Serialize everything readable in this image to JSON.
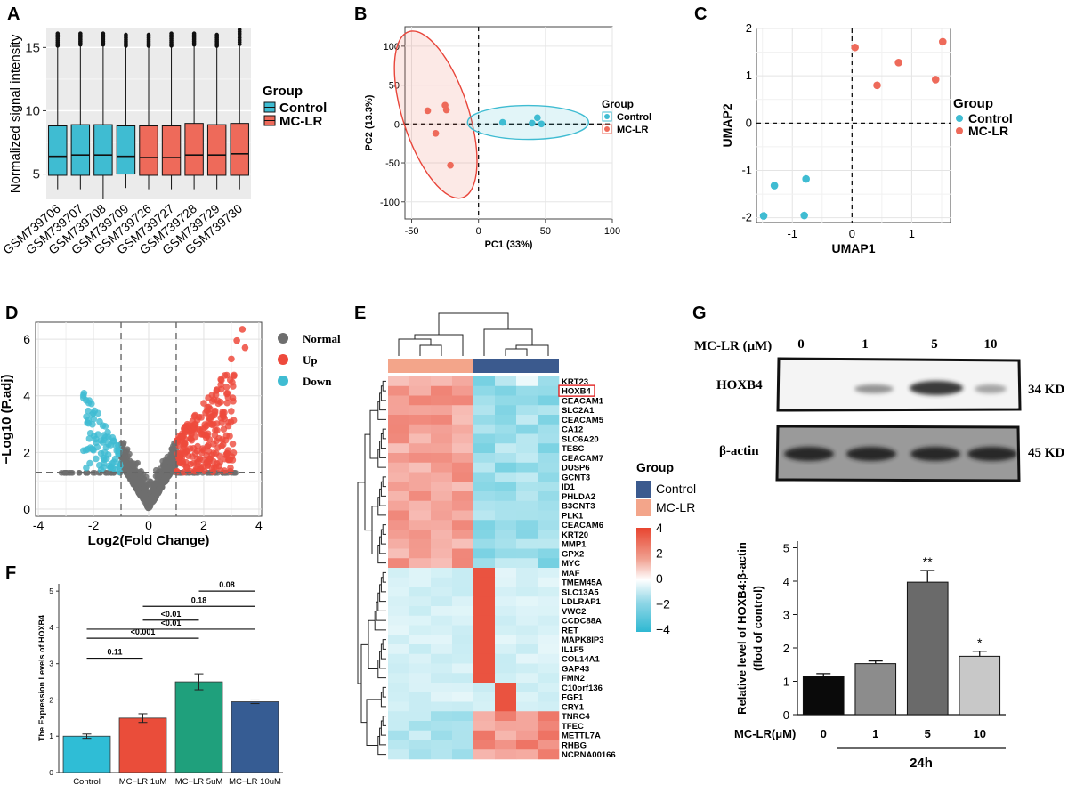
{
  "chart_data": [
    {
      "panel": "A",
      "type": "box",
      "ylabel": "Normalized signal intensity",
      "yticks": [
        5,
        10,
        15
      ],
      "ylim": [
        3.0,
        16.5
      ],
      "legend_title": "Group",
      "groups": [
        {
          "name": "Control",
          "color": "#3fbcd2"
        },
        {
          "name": "MC-LR",
          "color": "#ee6a5a"
        }
      ],
      "samples": [
        {
          "name": "GSM739706",
          "group": "Control",
          "whisker_low": 3.8,
          "q1": 4.9,
          "median": 6.4,
          "q3": 8.8,
          "whisker_high": 15.0,
          "outlier_top": 16.1
        },
        {
          "name": "GSM739707",
          "group": "Control",
          "whisker_low": 3.8,
          "q1": 4.9,
          "median": 6.5,
          "q3": 8.9,
          "whisker_high": 15.1,
          "outlier_top": 16.1
        },
        {
          "name": "GSM739708",
          "group": "Control",
          "whisker_low": 3.0,
          "q1": 4.9,
          "median": 6.5,
          "q3": 8.9,
          "whisker_high": 15.1,
          "outlier_top": 16.1
        },
        {
          "name": "GSM739709",
          "group": "Control",
          "whisker_low": 3.9,
          "q1": 5.0,
          "median": 6.4,
          "q3": 8.8,
          "whisker_high": 15.0,
          "outlier_top": 16.0
        },
        {
          "name": "GSM739726",
          "group": "MC-LR",
          "whisker_low": 3.8,
          "q1": 4.9,
          "median": 6.3,
          "q3": 8.8,
          "whisker_high": 15.0,
          "outlier_top": 16.0
        },
        {
          "name": "GSM739727",
          "group": "MC-LR",
          "whisker_low": 3.8,
          "q1": 4.9,
          "median": 6.3,
          "q3": 8.8,
          "whisker_high": 15.0,
          "outlier_top": 16.1
        },
        {
          "name": "GSM739728",
          "group": "MC-LR",
          "whisker_low": 3.8,
          "q1": 4.9,
          "median": 6.5,
          "q3": 9.0,
          "whisker_high": 15.1,
          "outlier_top": 16.1
        },
        {
          "name": "GSM739729",
          "group": "MC-LR",
          "whisker_low": 3.8,
          "q1": 4.9,
          "median": 6.5,
          "q3": 8.9,
          "whisker_high": 15.0,
          "outlier_top": 16.0
        },
        {
          "name": "GSM739730",
          "group": "MC-LR",
          "whisker_low": 3.8,
          "q1": 4.9,
          "median": 6.6,
          "q3": 9.0,
          "whisker_high": 15.1,
          "outlier_top": 16.4
        }
      ]
    },
    {
      "panel": "B",
      "type": "scatter",
      "xlabel": "PC1 (33%)",
      "ylabel": "PC2 (13.3%)",
      "xticks": [
        -50,
        0,
        50,
        100
      ],
      "yticks": [
        100,
        50,
        0,
        -50,
        -100
      ],
      "xlim": [
        -55,
        100
      ],
      "ylim": [
        -122,
        125
      ],
      "legend_title": "Group",
      "series": [
        {
          "name": "Control",
          "color": "#3fbcd2",
          "points": [
            [
              18,
              2
            ],
            [
              40,
              1
            ],
            [
              44,
              8
            ],
            [
              47,
              0
            ]
          ]
        },
        {
          "name": "MC-LR",
          "color": "#ee6a5a",
          "points": [
            [
              -38,
              17
            ],
            [
              -25,
              24
            ],
            [
              -24,
              18
            ],
            [
              -32,
              -12
            ],
            [
              -21,
              -53
            ]
          ]
        }
      ]
    },
    {
      "panel": "C",
      "type": "scatter",
      "xlabel": "UMAP1",
      "ylabel": "UMAP2",
      "xticks": [
        -1,
        0,
        1
      ],
      "yticks": [
        2,
        1,
        0,
        -1,
        -2
      ],
      "xlim": [
        -1.6,
        1.65
      ],
      "ylim": [
        -2.1,
        2.0
      ],
      "legend_title": "Group",
      "series": [
        {
          "name": "Control",
          "color": "#3fbcd2",
          "points": [
            [
              -1.3,
              -1.32
            ],
            [
              -0.77,
              -1.18
            ],
            [
              -1.48,
              -1.96
            ],
            [
              -0.8,
              -1.95
            ]
          ]
        },
        {
          "name": "MC-LR",
          "color": "#ee6a5a",
          "points": [
            [
              0.05,
              1.6
            ],
            [
              1.52,
              1.72
            ],
            [
              0.78,
              1.28
            ],
            [
              0.42,
              0.8
            ],
            [
              1.4,
              0.92
            ]
          ]
        }
      ]
    },
    {
      "panel": "D",
      "type": "scatter",
      "xlabel": "Log2(Fold  Change)",
      "ylabel": "−Log10 (P.adj)",
      "xticks": [
        -4,
        -2,
        0,
        2,
        4
      ],
      "yticks": [
        0,
        2,
        4,
        6
      ],
      "xlim": [
        -4.1,
        4.1
      ],
      "ylim": [
        -0.25,
        6.6
      ],
      "thresholds": {
        "logfc": 1,
        "p": 1.3
      },
      "legend": [
        {
          "name": "Normal",
          "color": "#6e6e6e"
        },
        {
          "name": "Up",
          "color": "#ee4a3c"
        },
        {
          "name": "Down",
          "color": "#3fbcd2"
        }
      ]
    },
    {
      "panel": "E",
      "type": "heatmap",
      "genes": [
        "KRT23",
        "HOXB4",
        "CEACAM1",
        "SLC2A1",
        "CEACAM5",
        "CA12",
        "SLC6A20",
        "TESC",
        "CEACAM7",
        "DUSP6",
        "GCNT3",
        "ID1",
        "PHLDA2",
        "B3GNT3",
        "PLK1",
        "CEACAM6",
        "KRT20",
        "MMP1",
        "GPX2",
        "MYC",
        "MAF",
        "TMEM45A",
        "SLC13A5",
        "LDLRAP1",
        "VWC2",
        "CCDC88A",
        "RET",
        "MAPK8IP3",
        "IL1F5",
        "COL14A1",
        "GAP43",
        "FMN2",
        "C10orf136",
        "FGF1",
        "CRY1",
        "TNRC4",
        "TFEC",
        "METTL7A",
        "RHBG",
        "NCRNA00166"
      ],
      "highlight": "HOXB4",
      "legend_title": "Group",
      "groups": [
        {
          "name": "Control",
          "color": "#3b5a8e"
        },
        {
          "name": "MC-LR",
          "color": "#f3a58a"
        }
      ],
      "scale_ticks": [
        "4",
        "2",
        "0",
        "−2",
        "−4"
      ]
    },
    {
      "panel": "F",
      "type": "bar",
      "ylabel": "The Expression Levels of HOXB4",
      "yticks": [
        0,
        1,
        2,
        3,
        4,
        5
      ],
      "ylim": [
        0,
        5.2
      ],
      "categories": [
        "Control",
        "MC−LR 1uM",
        "MC−LR 5uM",
        "MC−LR 10uM"
      ],
      "values": [
        1.0,
        1.5,
        2.5,
        1.95
      ],
      "errors": [
        0.06,
        0.12,
        0.22,
        0.05
      ],
      "colors": [
        "#2fbdd6",
        "#ea4d3a",
        "#1fa07c",
        "#365c93"
      ],
      "comparisons": [
        {
          "from": 0,
          "to": 1,
          "y": 3.15,
          "label": "0.11"
        },
        {
          "from": 0,
          "to": 2,
          "y": 3.7,
          "label": "<0.001"
        },
        {
          "from": 0,
          "to": 3,
          "y": 3.95,
          "label": "<0.01"
        },
        {
          "from": 1,
          "to": 2,
          "y": 4.2,
          "label": "<0.01"
        },
        {
          "from": 1,
          "to": 3,
          "y": 4.58,
          "label": "0.18"
        },
        {
          "from": 2,
          "to": 3,
          "y": 5.0,
          "label": "0.08"
        }
      ]
    },
    {
      "panel": "G",
      "type": "bar",
      "ylabel": "Relative level of HOXB4:β-actin",
      "ylabel2": "(flod of control)",
      "yticks": [
        0,
        1,
        2,
        3,
        4,
        5
      ],
      "ylim": [
        0,
        5.2
      ],
      "xlabel_prefix": "MC-LR(μM)",
      "categories": [
        "0",
        "1",
        "5",
        "10"
      ],
      "values": [
        1.15,
        1.53,
        3.97,
        1.75
      ],
      "errors": [
        0.08,
        0.08,
        0.35,
        0.15
      ],
      "significance": [
        "",
        "",
        "**",
        "*"
      ],
      "colors": [
        "#0a0a0a",
        "#8c8c8c",
        "#6a6a6a",
        "#c8c8c8"
      ],
      "group_label": "24h"
    }
  ],
  "panel_labels": [
    "A",
    "B",
    "C",
    "D",
    "E",
    "F",
    "G"
  ],
  "blot": {
    "header": "MC-LR (μM)",
    "concentrations": [
      "0",
      "1",
      "5",
      "10"
    ],
    "rows": [
      {
        "protein": "HOXB4",
        "size": "34 KD"
      },
      {
        "protein": "β-actin",
        "size": "45 KD"
      }
    ]
  }
}
